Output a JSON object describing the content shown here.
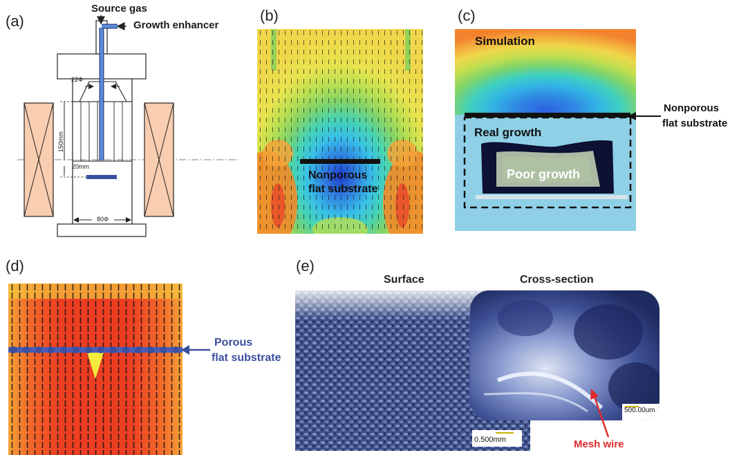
{
  "panels": {
    "a": {
      "label": "(a)",
      "source_gas": "Source gas",
      "growth_enhancer": "Growth enhancer",
      "dim_22": "22Φ",
      "dim_150": "150mm",
      "dim_20": "20mm",
      "dim_80": "80Φ"
    },
    "b": {
      "label": "(b)",
      "substrate_line1": "Nonporous",
      "substrate_line2": "flat substrate"
    },
    "c": {
      "label": "(c)",
      "simulation": "Simulation",
      "real_growth": "Real growth",
      "poor_growth": "Poor growth",
      "callout_line1": "Nonporous",
      "callout_line2": "flat substrate"
    },
    "d": {
      "label": "(d)",
      "callout_line1": "Porous",
      "callout_line2": "flat substrate"
    },
    "e": {
      "label": "(e)",
      "surface": "Surface",
      "cross_section": "Cross-section",
      "scale_surface": "0.500mm",
      "scale_cross": "500.00um",
      "mesh_wire": "Mesh wire"
    }
  },
  "colors": {
    "substrate_blue": "#3b4fa0",
    "coil_fill": "#f8cdb0",
    "mesh_wire_red": "#e02a2a",
    "sim_sky": "#8fd0e6"
  }
}
